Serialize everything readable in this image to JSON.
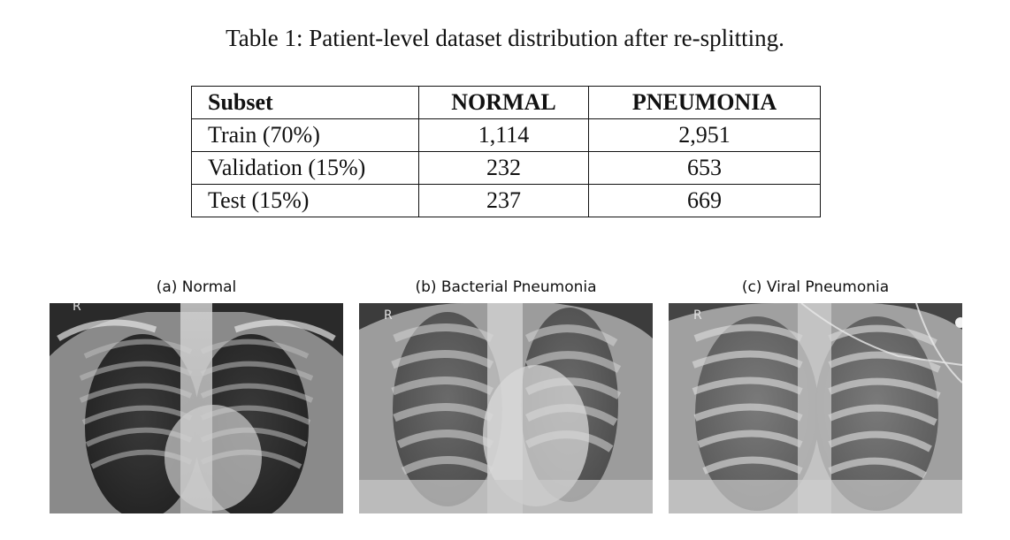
{
  "table": {
    "caption": "Table 1: Patient-level dataset distribution after re-splitting.",
    "headers": [
      "Subset",
      "NORMAL",
      "PNEUMONIA"
    ],
    "rows": [
      [
        "Train (70%)",
        "1,114",
        "2,951"
      ],
      [
        "Validation (15%)",
        "232",
        "653"
      ],
      [
        "Test (15%)",
        "237",
        "669"
      ]
    ]
  },
  "figure": {
    "panels": [
      {
        "title": "(a) Normal",
        "marker": "R"
      },
      {
        "title": "(b) Bacterial Pneumonia",
        "marker": "R"
      },
      {
        "title": "(c) Viral Pneumonia",
        "marker": "R"
      }
    ]
  }
}
